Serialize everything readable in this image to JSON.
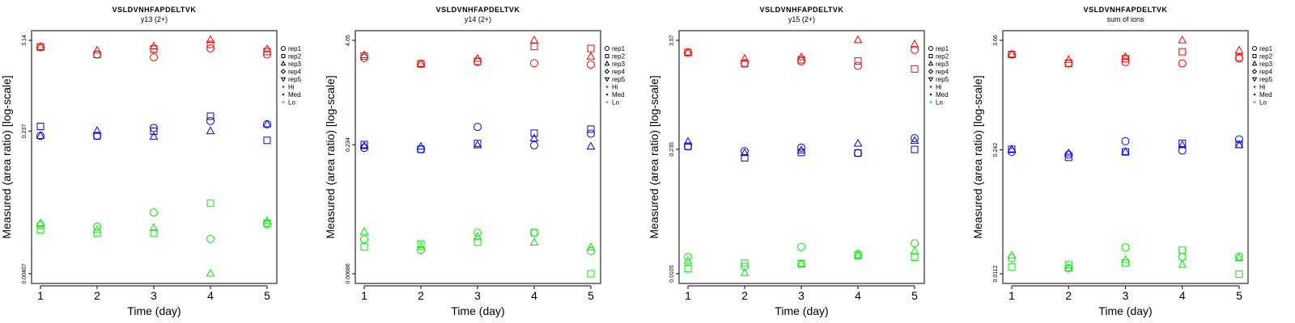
{
  "legend": {
    "shapes": [
      {
        "label": "rep1",
        "shape": "circle"
      },
      {
        "label": "rep2",
        "shape": "square"
      },
      {
        "label": "rep3",
        "shape": "triangle"
      },
      {
        "label": "rep4",
        "shape": "diamond"
      },
      {
        "label": "rep5",
        "shape": "triangle-down"
      }
    ],
    "groups": [
      {
        "label": "Hi",
        "color": "#ff0000"
      },
      {
        "label": "Med",
        "color": "#0000ff"
      },
      {
        "label": "Lo",
        "color": "#00ee00"
      }
    ]
  },
  "chart_data": [
    {
      "type": "scatter",
      "title": "VSLDVNHFAPDELTVK",
      "subtitle": "y13 (2+)",
      "xlabel": "Time (day)",
      "ylabel": "Measured (area ratio) [log-scale]",
      "yscale": "log",
      "x_ticks": [
        "1",
        "2",
        "3",
        "4",
        "5"
      ],
      "y_ticks": [
        "3.14",
        "0.237",
        "0.00407"
      ],
      "ylim": [
        0.00407,
        3.14
      ],
      "series": {
        "Hi": {
          "rep1": [
            2.6,
            2.1,
            1.95,
            2.5,
            2.1
          ],
          "rep2": [
            2.6,
            2.1,
            2.46,
            2.8,
            2.28
          ],
          "rep3": [
            2.6,
            2.35,
            2.65,
            3.19,
            2.44
          ]
        },
        "Med": {
          "rep1": [
            0.207,
            0.207,
            0.259,
            0.316,
            0.288
          ],
          "rep2": [
            0.271,
            0.207,
            0.236,
            0.362,
            0.182
          ],
          "rep3": [
            0.207,
            0.238,
            0.202,
            0.236,
            0.288
          ]
        },
        "Lo": {
          "rep1": [
            0.0162,
            0.0156,
            0.0233,
            0.011,
            0.0166
          ],
          "rep2": [
            0.0142,
            0.0129,
            0.0129,
            0.0303,
            0.0172
          ],
          "rep3": [
            0.0172,
            0.0142,
            0.015,
            0.0041,
            0.0183
          ]
        }
      }
    },
    {
      "type": "scatter",
      "title": "VSLDVNHFAPDELTVK",
      "subtitle": "y14 (2+)",
      "xlabel": "Time (day)",
      "ylabel": "Measured (area ratio) [log-scale]",
      "yscale": "log",
      "x_ticks": [
        "1",
        "2",
        "3",
        "4",
        "5"
      ],
      "y_ticks": [
        "4.05",
        "0.234",
        "0.00686"
      ],
      "ylim": [
        0.00686,
        4.05
      ],
      "series": {
        "Hi": {
          "rep1": [
            2.5,
            2.13,
            2.25,
            2.17,
            2.09
          ],
          "rep2": [
            2.64,
            2.13,
            2.28,
            3.42,
            3.25
          ],
          "rep3": [
            2.7,
            2.13,
            2.45,
            4.05,
            2.6
          ]
        },
        "Med": {
          "rep1": [
            0.214,
            0.206,
            0.38,
            0.23,
            0.316
          ],
          "rep2": [
            0.235,
            0.206,
            0.242,
            0.32,
            0.358
          ],
          "rep3": [
            0.225,
            0.222,
            0.23,
            0.277,
            0.222
          ]
        },
        "Lo": {
          "rep1": [
            0.0176,
            0.0131,
            0.0211,
            0.0211,
            0.0128
          ],
          "rep2": [
            0.0143,
            0.0154,
            0.0163,
            0.0211,
            0.00686
          ],
          "rep3": [
            0.0216,
            0.0143,
            0.0189,
            0.0161,
            0.0141
          ]
        }
      }
    },
    {
      "type": "scatter",
      "title": "VSLDVNHFAPDELTVK",
      "subtitle": "y15 (2+)",
      "xlabel": "Time (day)",
      "ylabel": "Measured (area ratio) [log-scale]",
      "yscale": "log",
      "x_ticks": [
        "1",
        "2",
        "3",
        "4",
        "5"
      ],
      "y_ticks": [
        "3.57",
        "0.235",
        "0.0105"
      ],
      "ylim": [
        0.0105,
        3.57
      ],
      "series": {
        "Hi": {
          "rep1": [
            2.64,
            2.02,
            2.12,
            1.89,
            2.82
          ],
          "rep2": [
            2.64,
            2.0,
            2.2,
            2.13,
            1.75
          ],
          "rep3": [
            2.64,
            2.26,
            2.34,
            3.6,
            3.23
          ]
        },
        "Med": {
          "rep1": [
            0.253,
            0.224,
            0.245,
            0.214,
            0.31
          ],
          "rep2": [
            0.253,
            0.19,
            0.217,
            0.214,
            0.234
          ],
          "rep3": [
            0.284,
            0.214,
            0.229,
            0.271,
            0.29
          ]
        },
        "Lo": {
          "rep1": [
            0.0159,
            0.0126,
            0.0205,
            0.0171,
            0.0224
          ],
          "rep2": [
            0.012,
            0.0137,
            0.0135,
            0.0166,
            0.0159
          ],
          "rep3": [
            0.0145,
            0.0107,
            0.0135,
            0.0166,
            0.0185
          ]
        }
      }
    },
    {
      "type": "scatter",
      "title": "VSLDVNHFAPDELTVK",
      "subtitle": "sum of ions",
      "xlabel": "Time (day)",
      "ylabel": "Measured (area ratio) [log-scale]",
      "yscale": "log",
      "x_ticks": [
        "1",
        "2",
        "3",
        "4",
        "5"
      ],
      "y_ticks": [
        "3.66",
        "0.242",
        "0.0112"
      ],
      "ylim": [
        0.0112,
        3.66
      ],
      "series": {
        "Hi": {
          "rep1": [
            2.58,
            2.07,
            2.14,
            2.07,
            2.34
          ],
          "rep2": [
            2.58,
            2.07,
            2.32,
            2.76,
            2.4
          ],
          "rep3": [
            2.58,
            2.26,
            2.42,
            3.66,
            2.84
          ]
        },
        "Med": {
          "rep1": [
            0.23,
            0.215,
            0.3,
            0.238,
            0.314
          ],
          "rep2": [
            0.245,
            0.201,
            0.23,
            0.285,
            0.277
          ],
          "rep3": [
            0.245,
            0.222,
            0.23,
            0.272,
            0.272
          ]
        },
        "Lo": {
          "rep1": [
            0.0165,
            0.0129,
            0.0215,
            0.017,
            0.0172
          ],
          "rep2": [
            0.0132,
            0.014,
            0.0146,
            0.0201,
            0.0111
          ],
          "rep3": [
            0.0176,
            0.0128,
            0.0158,
            0.014,
            0.0166
          ]
        }
      }
    }
  ]
}
